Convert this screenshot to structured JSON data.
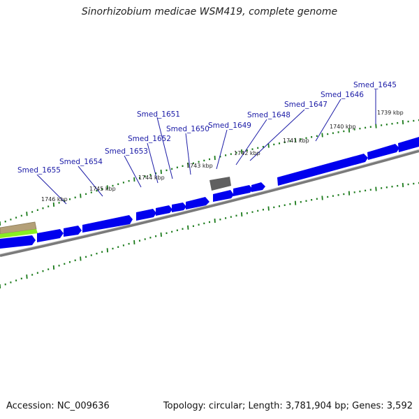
{
  "title": "Sinorhizobium medicae WSM419, complete genome",
  "footer": {
    "accession": "Accession: NC_009636",
    "summary": "Topology: circular; Length: 3,781,904 bp; Genes: 3,592"
  },
  "colors": {
    "gene_forward": "#0000ee",
    "gene_gray": "#606060",
    "backbone": "#7a7a7a",
    "tick_green": "#1a7a1a",
    "label_blue": "#1a1aa6",
    "other_feature_tan": "#b4a078",
    "other_feature_green": "#88ee22"
  },
  "genes": [
    {
      "label": "Smed_1645"
    },
    {
      "label": "Smed_1646"
    },
    {
      "label": "Smed_1647"
    },
    {
      "label": "Smed_1648"
    },
    {
      "label": "Smed_1649"
    },
    {
      "label": "Smed_1650"
    },
    {
      "label": "Smed_1651"
    },
    {
      "label": "Smed_1652"
    },
    {
      "label": "Smed_1653"
    },
    {
      "label": "Smed_1654"
    },
    {
      "label": "Smed_1655"
    }
  ],
  "ticks": [
    {
      "label": "1739 kbp"
    },
    {
      "label": "1740 kbp"
    },
    {
      "label": "1741 kbp"
    },
    {
      "label": "1742 kbp"
    },
    {
      "label": "1743 kbp"
    },
    {
      "label": "1744 kbp"
    },
    {
      "label": "1745 kbp"
    },
    {
      "label": "1746 kbp"
    }
  ]
}
